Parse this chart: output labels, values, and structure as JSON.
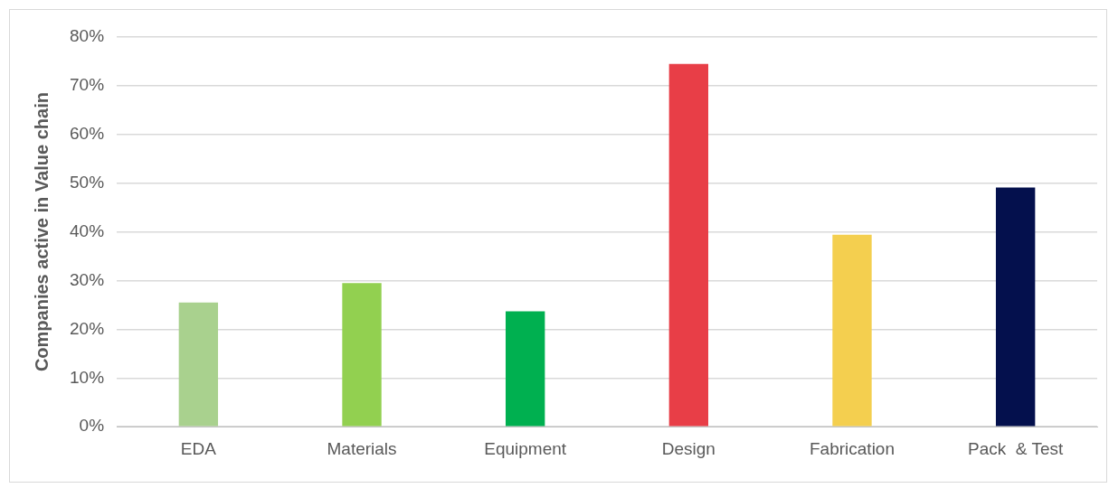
{
  "chart_data": {
    "type": "bar",
    "ylabel": "Companies active in Value chain",
    "categories": [
      "EDA",
      "Materials",
      "Equipment",
      "Design",
      "Fabrication",
      "Pack  & Test"
    ],
    "values": [
      25.5,
      29.5,
      23.7,
      74.5,
      39.4,
      49.1
    ],
    "colors": [
      "#a9d18e",
      "#92d050",
      "#00b050",
      "#e83e47",
      "#f4cf4f",
      "#04104d"
    ],
    "ylim": [
      0,
      80
    ],
    "yticks": [
      {
        "value": 0,
        "label": "0%"
      },
      {
        "value": 10,
        "label": "10%"
      },
      {
        "value": 20,
        "label": "20%"
      },
      {
        "value": 30,
        "label": "30%"
      },
      {
        "value": 40,
        "label": "40%"
      },
      {
        "value": 50,
        "label": "50%"
      },
      {
        "value": 60,
        "label": "60%"
      },
      {
        "value": 70,
        "label": "70%"
      },
      {
        "value": 80,
        "label": "80%"
      }
    ],
    "grid": "y",
    "legend": false
  }
}
